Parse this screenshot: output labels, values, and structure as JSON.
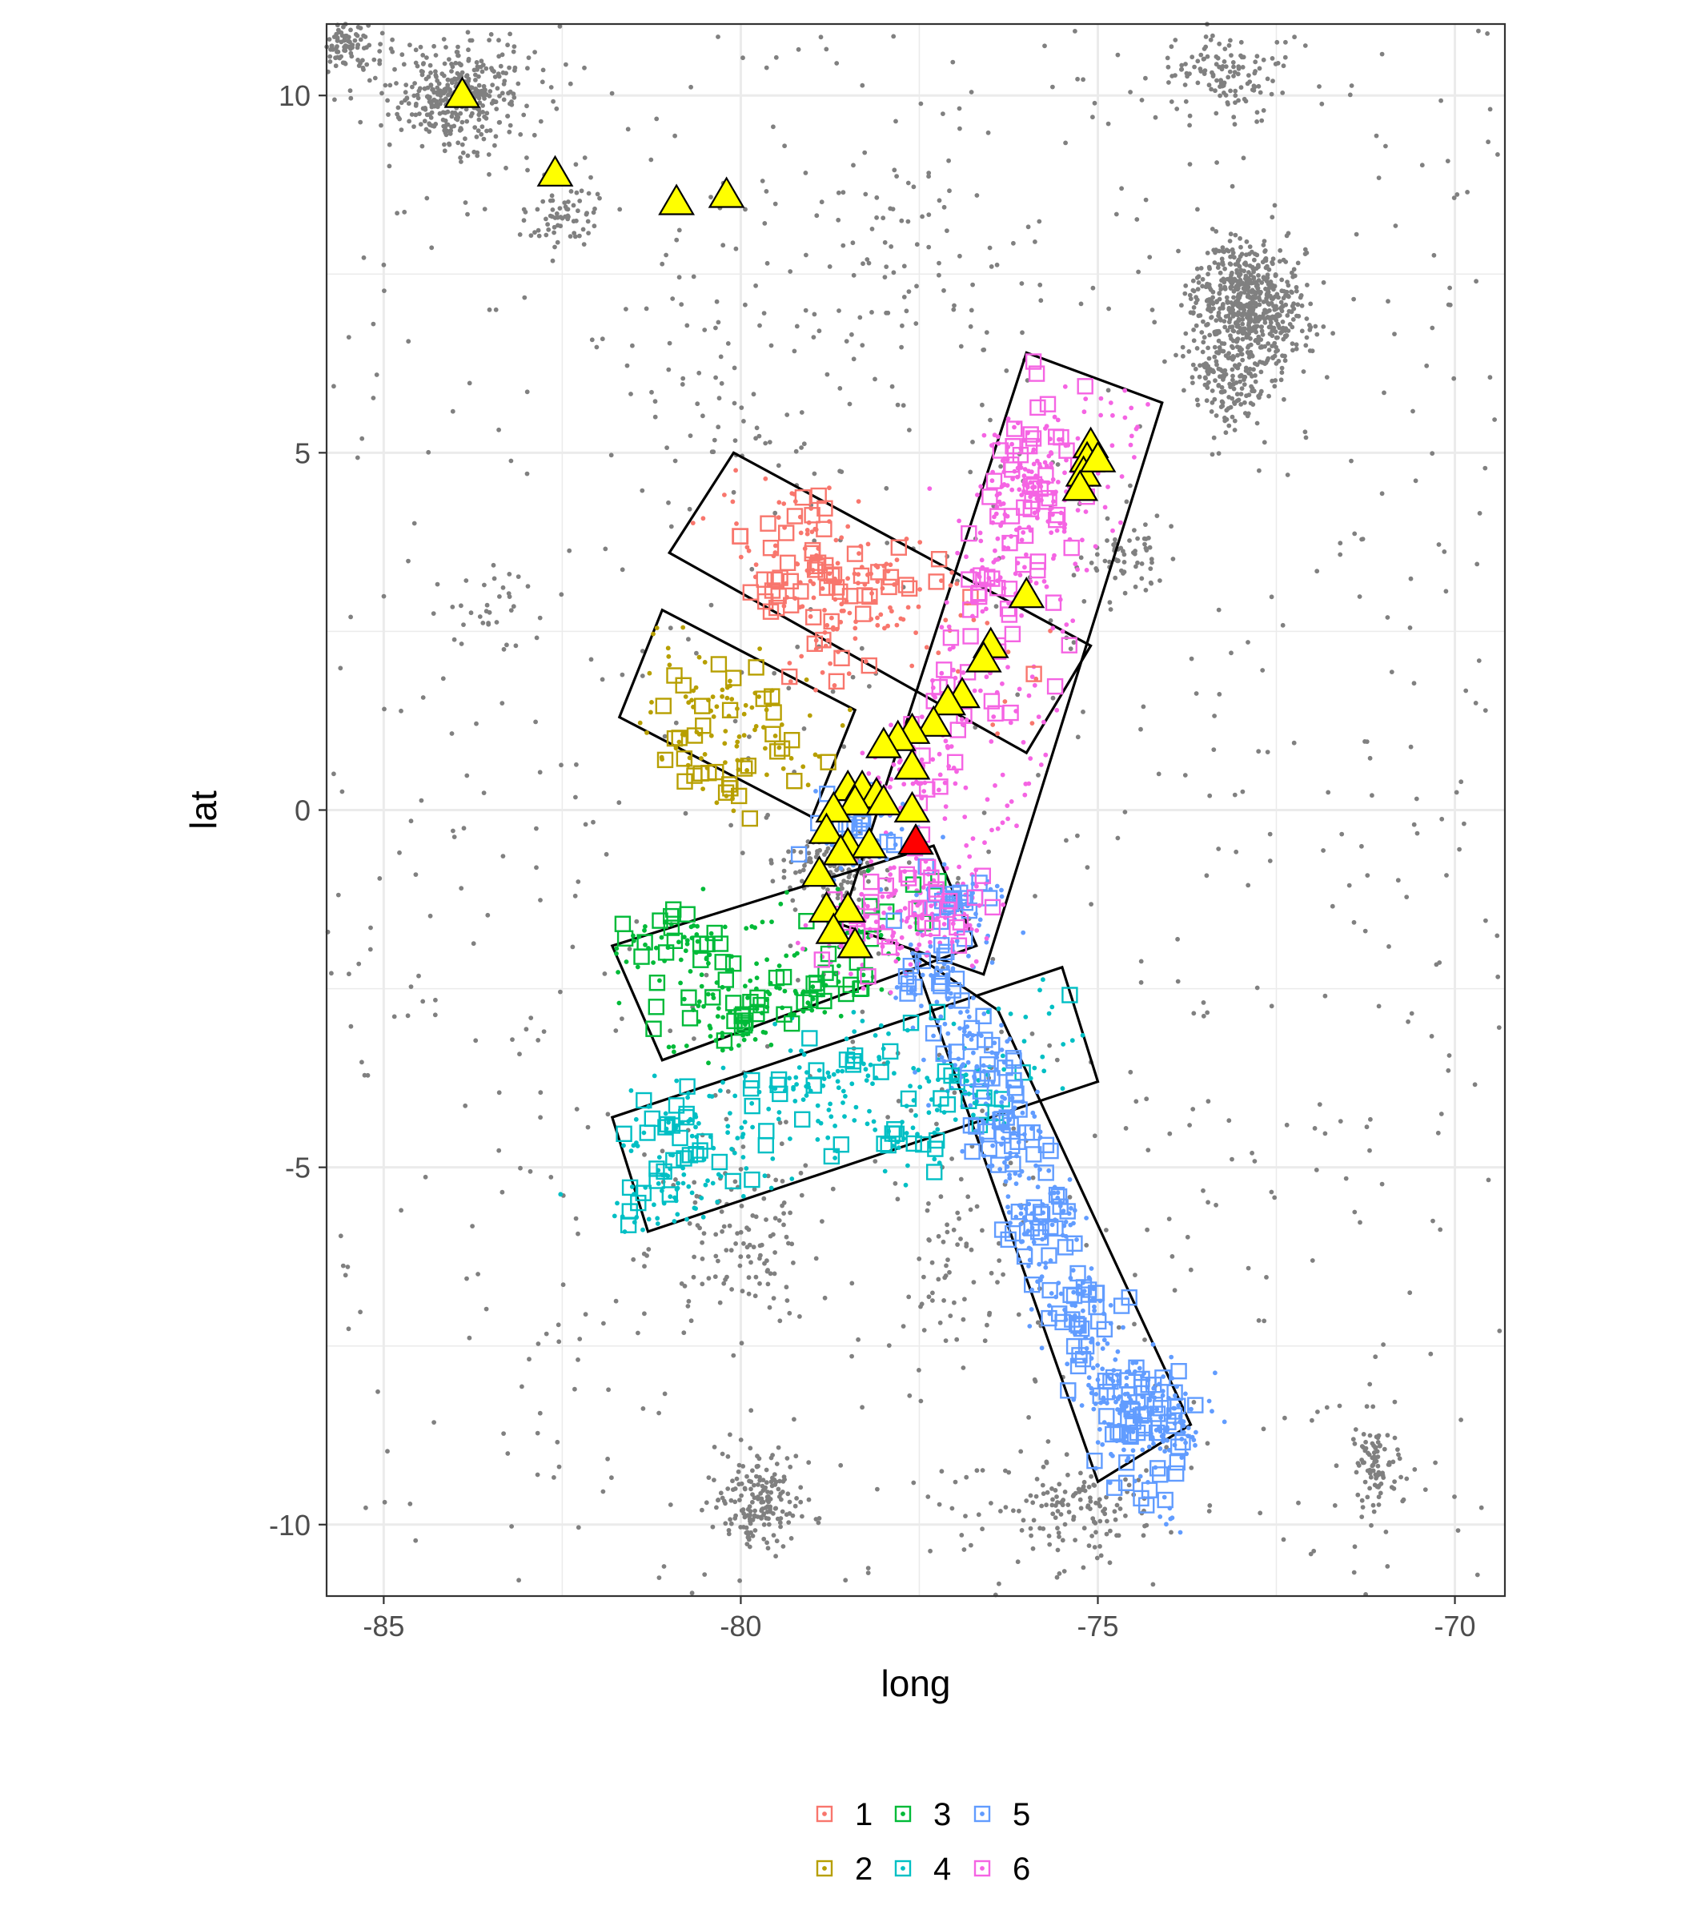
{
  "chart_data": {
    "type": "scatter",
    "title": "",
    "xlabel": "long",
    "ylabel": "lat",
    "xlim": [
      -85.8,
      -69.3
    ],
    "ylim": [
      -11,
      11
    ],
    "x_ticks": [
      -85,
      -80,
      -75,
      -70
    ],
    "y_ticks": [
      10,
      5,
      0,
      -5,
      -10
    ],
    "x_tick_labels": [
      "-85",
      "-80",
      "-75",
      "-70"
    ],
    "y_tick_labels": [
      "10",
      "5",
      "0",
      "-5",
      "-10"
    ],
    "grid": true,
    "legend_position": "bottom",
    "colors": {
      "background_points": "#808080",
      "triangle_fill": "#ffff00",
      "triangle_highlight": "#ff0000",
      "panel_border": "#333333",
      "grid_major": "#ebebeb"
    },
    "background_clusters": [
      {
        "cx": -84.0,
        "cy": 10.0,
        "sx": 0.5,
        "sy": 0.35,
        "n": 380
      },
      {
        "cx": -85.6,
        "cy": 10.7,
        "sx": 0.3,
        "sy": 0.2,
        "n": 120
      },
      {
        "cx": -72.9,
        "cy": 7.0,
        "sx": 0.4,
        "sy": 0.45,
        "n": 650
      },
      {
        "cx": -73.2,
        "cy": 6.0,
        "sx": 0.3,
        "sy": 0.3,
        "n": 120
      },
      {
        "cx": -73.2,
        "cy": 10.3,
        "sx": 0.4,
        "sy": 0.3,
        "n": 120
      },
      {
        "cx": -82.5,
        "cy": 8.3,
        "sx": 0.3,
        "sy": 0.3,
        "n": 70
      },
      {
        "cx": -78.8,
        "cy": -0.8,
        "sx": 0.4,
        "sy": 0.25,
        "n": 120
      },
      {
        "cx": -79.7,
        "cy": -9.7,
        "sx": 0.3,
        "sy": 0.3,
        "n": 170
      },
      {
        "cx": -75.4,
        "cy": -9.8,
        "sx": 0.5,
        "sy": 0.3,
        "n": 120
      },
      {
        "cx": -71.2,
        "cy": -9.2,
        "sx": 0.2,
        "sy": 0.4,
        "n": 90
      },
      {
        "cx": -74.6,
        "cy": 3.5,
        "sx": 0.3,
        "sy": 0.3,
        "n": 60
      },
      {
        "cx": -80.0,
        "cy": -6.0,
        "sx": 0.6,
        "sy": 0.7,
        "n": 110
      },
      {
        "cx": -83.5,
        "cy": 2.8,
        "sx": 0.3,
        "sy": 0.3,
        "n": 30
      },
      {
        "cx": -78.0,
        "cy": 7.5,
        "sx": 1.0,
        "sy": 1.0,
        "n": 80
      },
      {
        "cx": -80.5,
        "cy": 6.0,
        "sx": 0.8,
        "sy": 0.8,
        "n": 40
      },
      {
        "cx": -77.0,
        "cy": -6.5,
        "sx": 0.5,
        "sy": 0.8,
        "n": 60
      }
    ],
    "background_scatter": {
      "x_range": [
        -85.8,
        -69.3
      ],
      "y_range": [
        -11,
        11
      ],
      "n": 850
    },
    "groups": [
      {
        "name": "1",
        "color": "#F8766D",
        "rect": [
          [
            -81.0,
            3.6
          ],
          [
            -80.1,
            5.0
          ],
          [
            -75.1,
            2.3
          ],
          [
            -76.0,
            0.8
          ]
        ],
        "points": [
          -79.0,
          3.3,
          -78.4,
          2.6,
          -79.4,
          3.1,
          -78.1,
          3.4,
          -78.8,
          2.2,
          -77.4,
          3.2,
          -79.1,
          4.1
        ],
        "n_dots": 160,
        "n_squares": 60
      },
      {
        "name": "2",
        "color": "#B79F00",
        "rect": [
          [
            -81.7,
            1.3
          ],
          [
            -81.1,
            2.8
          ],
          [
            -78.4,
            1.4
          ],
          [
            -79.0,
            -0.1
          ]
        ],
        "points": [
          -80.4,
          0.7,
          -80.1,
          1.6,
          -80.0,
          0.5,
          -79.6,
          1.1,
          -80.5,
          1.9,
          -80.8,
          0.9
        ],
        "n_dots": 90,
        "n_squares": 35
      },
      {
        "name": "3",
        "color": "#00BA38",
        "rect": [
          [
            -81.8,
            -1.9
          ],
          [
            -81.1,
            -3.5
          ],
          [
            -76.7,
            -1.9
          ],
          [
            -77.3,
            -0.5
          ]
        ],
        "points": [
          -80.7,
          -2.4,
          -79.8,
          -2.6,
          -80.9,
          -2.0,
          -80.2,
          -3.0,
          -79.0,
          -2.6,
          -78.5,
          -2.3,
          -81.0,
          -1.8
        ],
        "n_dots": 160,
        "n_squares": 65
      },
      {
        "name": "4",
        "color": "#00BFC4",
        "rect": [
          [
            -81.8,
            -4.3
          ],
          [
            -81.3,
            -5.9
          ],
          [
            -75.0,
            -3.8
          ],
          [
            -75.5,
            -2.2
          ]
        ],
        "points": [
          -80.8,
          -4.2,
          -80.9,
          -5.0,
          -79.6,
          -4.0,
          -78.8,
          -3.8,
          -80.2,
          -4.7,
          -77.6,
          -4.6,
          -81.3,
          -5.5,
          -78.4,
          -3.4,
          -77.0,
          -3.8
        ],
        "n_dots": 260,
        "n_squares": 75
      },
      {
        "name": "5",
        "color": "#619CFF",
        "rect": [
          [
            -77.6,
            -2.0
          ],
          [
            -76.4,
            -2.8
          ],
          [
            -73.7,
            -8.6
          ],
          [
            -75.0,
            -9.4
          ]
        ],
        "points": [
          -77.3,
          -2.3,
          -76.8,
          -3.5,
          -76.2,
          -4.5,
          -75.8,
          -5.8,
          -75.3,
          -7.0,
          -74.4,
          -8.1,
          -74.1,
          -8.6,
          -74.5,
          -8.4,
          -77.0,
          -1.4,
          -78.3,
          -0.3
        ],
        "n_dots": 520,
        "n_squares": 190
      },
      {
        "name": "6",
        "color": "#F564E3",
        "rect": [
          [
            -76.0,
            6.4
          ],
          [
            -74.1,
            5.7
          ],
          [
            -76.6,
            -2.3
          ],
          [
            -78.6,
            -1.6
          ]
        ],
        "points": [
          -76.0,
          4.6,
          -75.6,
          4.2,
          -76.4,
          4.0,
          -75.9,
          5.0,
          -76.3,
          3.2,
          -76.8,
          1.6,
          -77.6,
          0.6,
          -77.6,
          -1.6,
          -78.0,
          -1.2,
          -78.4,
          -1.9,
          -77.2,
          -1.3
        ],
        "n_dots": 480,
        "n_squares": 110
      }
    ],
    "triangles": [
      [
        -83.9,
        10.0
      ],
      [
        -82.6,
        8.9
      ],
      [
        -80.9,
        8.5
      ],
      [
        -80.2,
        8.6
      ],
      [
        -75.1,
        5.1
      ],
      [
        -75.15,
        4.9
      ],
      [
        -75.2,
        4.7
      ],
      [
        -75.25,
        4.5
      ],
      [
        -75.0,
        4.9
      ],
      [
        -76.0,
        3.0
      ],
      [
        -76.5,
        2.3
      ],
      [
        -76.6,
        2.1
      ],
      [
        -76.9,
        1.6
      ],
      [
        -77.1,
        1.5
      ],
      [
        -77.3,
        1.2
      ],
      [
        -77.6,
        1.1
      ],
      [
        -77.8,
        1.0
      ],
      [
        -78.0,
        0.9
      ],
      [
        -77.6,
        0.6
      ],
      [
        -78.5,
        0.3
      ],
      [
        -78.3,
        0.3
      ],
      [
        -78.1,
        0.2
      ],
      [
        -78.4,
        0.1
      ],
      [
        -78.7,
        0.0
      ],
      [
        -78.0,
        0.1
      ],
      [
        -77.6,
        0.0
      ],
      [
        -78.8,
        -0.3
      ],
      [
        -78.5,
        -0.5
      ],
      [
        -78.2,
        -0.5
      ],
      [
        -78.6,
        -0.6
      ],
      [
        -78.9,
        -0.9
      ],
      [
        -78.8,
        -1.4
      ],
      [
        -78.5,
        -1.4
      ],
      [
        -78.7,
        -1.7
      ],
      [
        -78.4,
        -1.9
      ]
    ],
    "highlight_triangle": [
      -77.55,
      -0.45
    ],
    "legend": {
      "entries": [
        {
          "label": "1",
          "color": "#F8766D"
        },
        {
          "label": "2",
          "color": "#B79F00"
        },
        {
          "label": "3",
          "color": "#00BA38"
        },
        {
          "label": "4",
          "color": "#00BFC4"
        },
        {
          "label": "5",
          "color": "#619CFF"
        },
        {
          "label": "6",
          "color": "#F564E3"
        }
      ]
    }
  }
}
